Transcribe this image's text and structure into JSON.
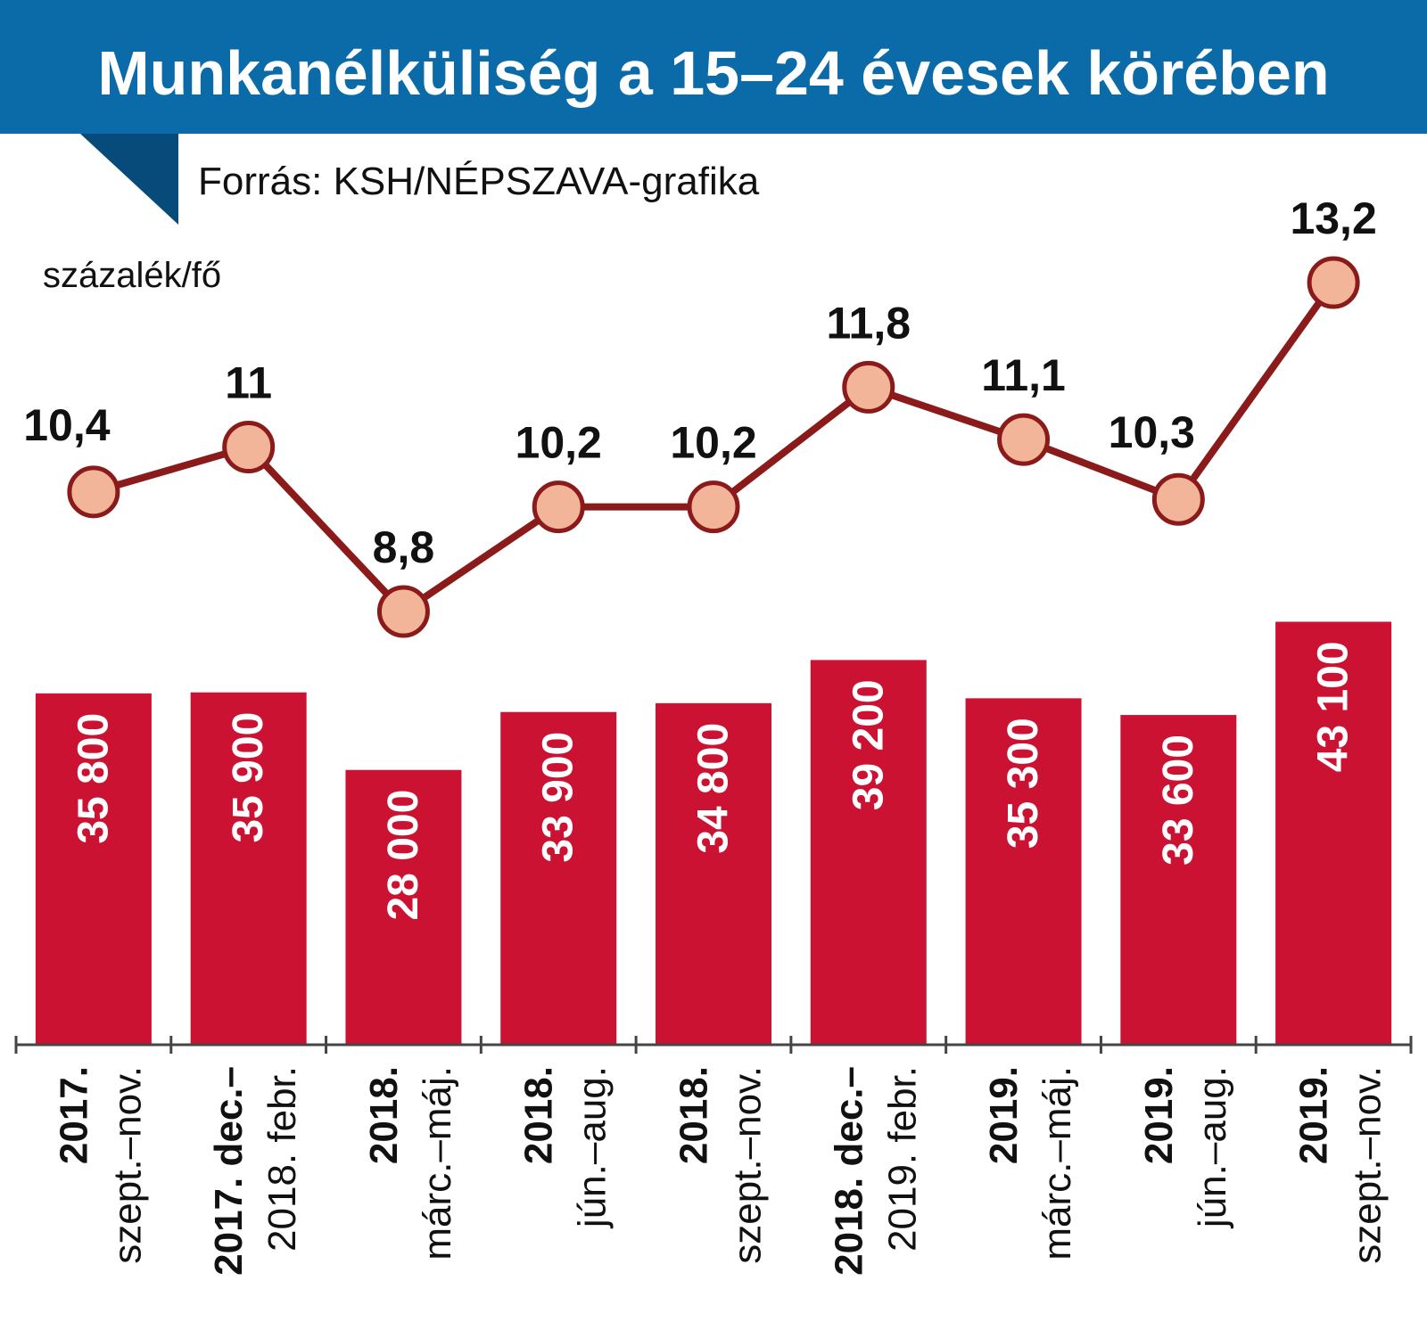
{
  "title": "Munkanélküliség a 15–24 évesek körében",
  "source": "Forrás: KSH/NÉPSZAVA-grafika",
  "unit_label": "százalék/fő",
  "colors": {
    "banner": "#0a6ba8",
    "banner_dark": "#064b7a",
    "bar": "#cc1233",
    "line": "#8b1a1a",
    "marker_fill": "#f2b59a",
    "text": "#111111",
    "bar_text": "#ffffff"
  },
  "chart_data": {
    "type": "bar",
    "categories": [
      [
        "2017.",
        "szept.–nov."
      ],
      [
        "2017. dec.–",
        "2018. febr."
      ],
      [
        "2018.",
        "márc.–máj."
      ],
      [
        "2018.",
        "jún.–aug."
      ],
      [
        "2018.",
        "szept.–nov."
      ],
      [
        "2018. dec.–",
        "2019. febr."
      ],
      [
        "2019.",
        "márc.–máj."
      ],
      [
        "2019.",
        "jún.–aug."
      ],
      [
        "2019.",
        "szept.–nov."
      ]
    ],
    "series": [
      {
        "type": "bar",
        "values": [
          35800,
          35900,
          28000,
          33900,
          34800,
          39200,
          35300,
          33600,
          43100
        ],
        "labels": [
          "35 800",
          "35 900",
          "28 000",
          "33 900",
          "34 800",
          "39 200",
          "35 300",
          "33 600",
          "43 100"
        ]
      },
      {
        "type": "line",
        "values": [
          10.4,
          11,
          8.8,
          10.2,
          10.2,
          11.8,
          11.1,
          10.3,
          13.2
        ],
        "labels": [
          "10,4",
          "11",
          "8,8",
          "10,2",
          "10,2",
          "11,8",
          "11,1",
          "10,3",
          "13,2"
        ]
      }
    ],
    "ylim_bar": [
      0,
      47000
    ],
    "ylim_line": [
      7.6,
      13.8
    ],
    "grid": false
  }
}
